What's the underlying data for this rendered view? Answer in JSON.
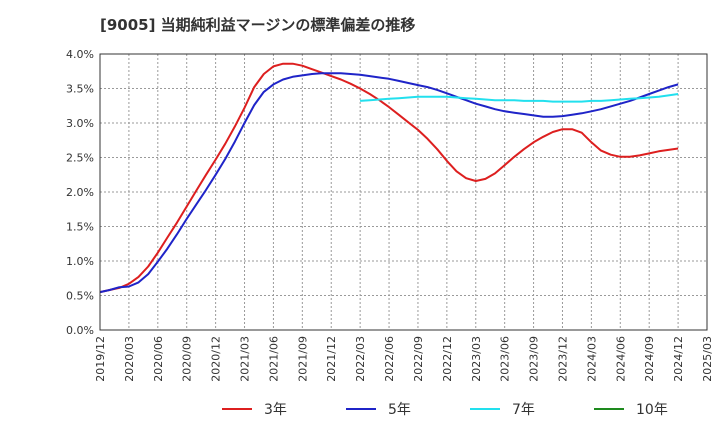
{
  "chart_data": {
    "type": "line",
    "title": "[9005]  当期純利益マージンの標準偏差の推移",
    "xlabel": "",
    "ylabel": "",
    "ylim": [
      0,
      4.0
    ],
    "y_ticks": [
      "0.0%",
      "0.5%",
      "1.0%",
      "1.5%",
      "2.0%",
      "2.5%",
      "3.0%",
      "3.5%",
      "4.0%"
    ],
    "x_ticks": [
      "2019/12",
      "2020/03",
      "2020/06",
      "2020/09",
      "2020/12",
      "2021/03",
      "2021/06",
      "2021/09",
      "2021/12",
      "2022/03",
      "2022/06",
      "2022/09",
      "2022/12",
      "2023/03",
      "2023/06",
      "2023/09",
      "2023/12",
      "2024/03",
      "2024/06",
      "2024/09",
      "2024/12",
      "2025/03"
    ],
    "grid": true,
    "legend_position": "bottom",
    "series": [
      {
        "name": "3年",
        "color": "#dd1f1f",
        "points": [
          [
            "2019/12",
            0.55
          ],
          [
            "2020/01",
            0.58
          ],
          [
            "2020/02",
            0.61
          ],
          [
            "2020/03",
            0.67
          ],
          [
            "2020/04",
            0.77
          ],
          [
            "2020/05",
            0.92
          ],
          [
            "2020/06",
            1.12
          ],
          [
            "2020/07",
            1.34
          ],
          [
            "2020/08",
            1.56
          ],
          [
            "2020/09",
            1.79
          ],
          [
            "2020/10",
            2.02
          ],
          [
            "2020/11",
            2.25
          ],
          [
            "2020/12",
            2.47
          ],
          [
            "2021/01",
            2.7
          ],
          [
            "2021/02",
            2.95
          ],
          [
            "2021/03",
            3.22
          ],
          [
            "2021/04",
            3.52
          ],
          [
            "2021/05",
            3.71
          ],
          [
            "2021/06",
            3.82
          ],
          [
            "2021/07",
            3.86
          ],
          [
            "2021/08",
            3.86
          ],
          [
            "2021/09",
            3.83
          ],
          [
            "2021/10",
            3.78
          ],
          [
            "2021/11",
            3.73
          ],
          [
            "2021/12",
            3.68
          ],
          [
            "2022/01",
            3.63
          ],
          [
            "2022/02",
            3.57
          ],
          [
            "2022/03",
            3.5
          ],
          [
            "2022/04",
            3.42
          ],
          [
            "2022/05",
            3.33
          ],
          [
            "2022/06",
            3.23
          ],
          [
            "2022/07",
            3.12
          ],
          [
            "2022/08",
            3.01
          ],
          [
            "2022/09",
            2.9
          ],
          [
            "2022/10",
            2.77
          ],
          [
            "2022/11",
            2.62
          ],
          [
            "2022/12",
            2.45
          ],
          [
            "2023/01",
            2.3
          ],
          [
            "2023/02",
            2.2
          ],
          [
            "2023/03",
            2.16
          ],
          [
            "2023/04",
            2.19
          ],
          [
            "2023/05",
            2.27
          ],
          [
            "2023/06",
            2.39
          ],
          [
            "2023/07",
            2.51
          ],
          [
            "2023/08",
            2.62
          ],
          [
            "2023/09",
            2.72
          ],
          [
            "2023/10",
            2.8
          ],
          [
            "2023/11",
            2.87
          ],
          [
            "2023/12",
            2.91
          ],
          [
            "2024/01",
            2.91
          ],
          [
            "2024/02",
            2.86
          ],
          [
            "2024/03",
            2.72
          ],
          [
            "2024/04",
            2.6
          ],
          [
            "2024/05",
            2.54
          ],
          [
            "2024/06",
            2.51
          ],
          [
            "2024/07",
            2.51
          ],
          [
            "2024/08",
            2.53
          ],
          [
            "2024/09",
            2.56
          ],
          [
            "2024/10",
            2.59
          ],
          [
            "2024/11",
            2.61
          ],
          [
            "2024/12",
            2.63
          ]
        ]
      },
      {
        "name": "5年",
        "color": "#1f24c8",
        "points": [
          [
            "2019/12",
            0.55
          ],
          [
            "2020/01",
            0.58
          ],
          [
            "2020/02",
            0.62
          ],
          [
            "2020/03",
            0.63
          ],
          [
            "2020/04",
            0.69
          ],
          [
            "2020/05",
            0.81
          ],
          [
            "2020/06",
            0.99
          ],
          [
            "2020/07",
            1.18
          ],
          [
            "2020/08",
            1.39
          ],
          [
            "2020/09",
            1.61
          ],
          [
            "2020/10",
            1.82
          ],
          [
            "2020/11",
            2.03
          ],
          [
            "2020/12",
            2.25
          ],
          [
            "2021/01",
            2.48
          ],
          [
            "2021/02",
            2.73
          ],
          [
            "2021/03",
            3.0
          ],
          [
            "2021/04",
            3.26
          ],
          [
            "2021/05",
            3.45
          ],
          [
            "2021/06",
            3.56
          ],
          [
            "2021/07",
            3.63
          ],
          [
            "2021/08",
            3.67
          ],
          [
            "2021/09",
            3.69
          ],
          [
            "2021/10",
            3.71
          ],
          [
            "2021/11",
            3.72
          ],
          [
            "2021/12",
            3.72
          ],
          [
            "2022/01",
            3.72
          ],
          [
            "2022/02",
            3.71
          ],
          [
            "2022/03",
            3.7
          ],
          [
            "2022/04",
            3.68
          ],
          [
            "2022/05",
            3.66
          ],
          [
            "2022/06",
            3.64
          ],
          [
            "2022/07",
            3.61
          ],
          [
            "2022/08",
            3.58
          ],
          [
            "2022/09",
            3.55
          ],
          [
            "2022/10",
            3.52
          ],
          [
            "2022/11",
            3.48
          ],
          [
            "2022/12",
            3.43
          ],
          [
            "2023/01",
            3.38
          ],
          [
            "2023/02",
            3.33
          ],
          [
            "2023/03",
            3.28
          ],
          [
            "2023/04",
            3.24
          ],
          [
            "2023/05",
            3.2
          ],
          [
            "2023/06",
            3.17
          ],
          [
            "2023/07",
            3.15
          ],
          [
            "2023/08",
            3.13
          ],
          [
            "2023/09",
            3.11
          ],
          [
            "2023/10",
            3.09
          ],
          [
            "2023/11",
            3.09
          ],
          [
            "2023/12",
            3.1
          ],
          [
            "2024/01",
            3.12
          ],
          [
            "2024/02",
            3.14
          ],
          [
            "2024/03",
            3.17
          ],
          [
            "2024/04",
            3.2
          ],
          [
            "2024/05",
            3.24
          ],
          [
            "2024/06",
            3.28
          ],
          [
            "2024/07",
            3.32
          ],
          [
            "2024/08",
            3.37
          ],
          [
            "2024/09",
            3.42
          ],
          [
            "2024/10",
            3.47
          ],
          [
            "2024/11",
            3.52
          ],
          [
            "2024/12",
            3.56
          ]
        ]
      },
      {
        "name": "7年",
        "color": "#22e0ee",
        "points": [
          [
            "2022/03",
            3.32
          ],
          [
            "2022/04",
            3.33
          ],
          [
            "2022/05",
            3.34
          ],
          [
            "2022/06",
            3.35
          ],
          [
            "2022/07",
            3.36
          ],
          [
            "2022/08",
            3.37
          ],
          [
            "2022/09",
            3.38
          ],
          [
            "2022/10",
            3.38
          ],
          [
            "2022/11",
            3.38
          ],
          [
            "2022/12",
            3.38
          ],
          [
            "2023/01",
            3.37
          ],
          [
            "2023/02",
            3.36
          ],
          [
            "2023/03",
            3.35
          ],
          [
            "2023/04",
            3.34
          ],
          [
            "2023/05",
            3.33
          ],
          [
            "2023/06",
            3.33
          ],
          [
            "2023/07",
            3.33
          ],
          [
            "2023/08",
            3.32
          ],
          [
            "2023/09",
            3.32
          ],
          [
            "2023/10",
            3.32
          ],
          [
            "2023/11",
            3.31
          ],
          [
            "2023/12",
            3.31
          ],
          [
            "2024/01",
            3.31
          ],
          [
            "2024/02",
            3.31
          ],
          [
            "2024/03",
            3.32
          ],
          [
            "2024/04",
            3.32
          ],
          [
            "2024/05",
            3.33
          ],
          [
            "2024/06",
            3.34
          ],
          [
            "2024/07",
            3.35
          ],
          [
            "2024/08",
            3.36
          ],
          [
            "2024/09",
            3.37
          ],
          [
            "2024/10",
            3.38
          ],
          [
            "2024/11",
            3.4
          ],
          [
            "2024/12",
            3.42
          ]
        ]
      },
      {
        "name": "10年",
        "color": "#1e8a1e",
        "points": []
      }
    ]
  }
}
